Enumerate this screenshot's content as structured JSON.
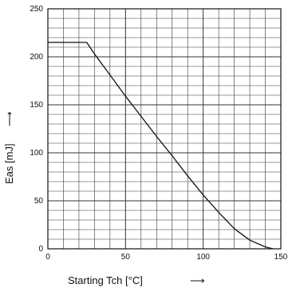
{
  "chart_data": {
    "type": "line",
    "title": "",
    "xlabel": "Starting Tch [°C]",
    "ylabel": "Eas [mJ]",
    "xlim": [
      0,
      150
    ],
    "ylim": [
      0,
      250
    ],
    "x_ticks": [
      0,
      50,
      100,
      150
    ],
    "y_ticks": [
      0,
      50,
      100,
      150,
      200,
      250
    ],
    "x_tick_labels": [
      "0",
      "50",
      "100",
      "150"
    ],
    "y_tick_labels": [
      "0",
      "50",
      "100",
      "150",
      "200",
      "250"
    ],
    "x_grid_step": 10,
    "y_grid_step": 10,
    "grid": true,
    "legend": "none",
    "line_color": "#111111",
    "grid_color": "#333333",
    "arrow_glyph": "⟶",
    "series": [
      {
        "x": [
          0,
          25,
          30,
          40,
          50,
          60,
          70,
          80,
          90,
          100,
          110,
          120,
          130,
          140,
          145
        ],
        "y": [
          215,
          215,
          203,
          181,
          159,
          138,
          117,
          97,
          76,
          56,
          38,
          21,
          9,
          2,
          0
        ]
      }
    ]
  }
}
